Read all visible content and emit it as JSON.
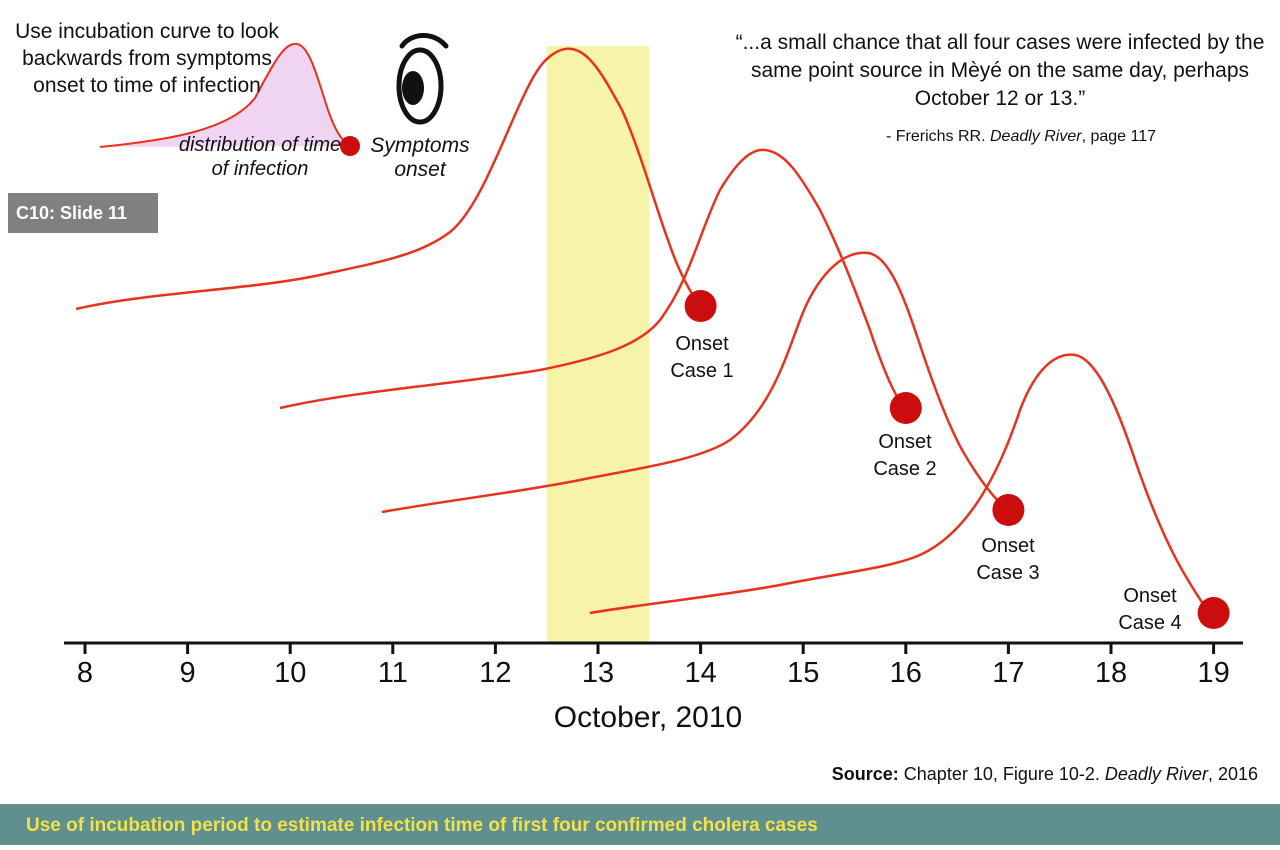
{
  "note": "Use incubation curve to look backwards from symptoms onset to time of infection",
  "distribution_label": "distribution of time of infection",
  "symptoms_label": "Symptoms onset",
  "quote": "“...a small chance that all four cases were infected by the same point source in Mèyé on the same day, perhaps October 12 or 13.”",
  "citation": {
    "prefix": "- Frerichs RR. ",
    "book": "Deadly River",
    "suffix": ", page 117"
  },
  "slide_tag": "C10: Slide 11",
  "axis": {
    "ticks": [
      "8",
      "9",
      "10",
      "11",
      "12",
      "13",
      "14",
      "15",
      "16",
      "17",
      "18",
      "19"
    ],
    "title": "October, 2010"
  },
  "highlight": {
    "from": 12.5,
    "to": 13.5,
    "color": "#f7f3a8"
  },
  "cases": [
    {
      "label": "Onset Case 1",
      "line1": "Onset",
      "line2": "Case 1",
      "onset_day": 14
    },
    {
      "label": "Onset Case 2",
      "line1": "Onset",
      "line2": "Case 2",
      "onset_day": 16
    },
    {
      "label": "Onset Case 3",
      "line1": "Onset",
      "line2": "Case 3",
      "onset_day": 17
    },
    {
      "label": "Onset Case 4",
      "line1": "Onset",
      "line2": "Case 4",
      "onset_day": 19
    }
  ],
  "source": {
    "bold": "Source:",
    "text": " Chapter 10, Figure 10-2. ",
    "book": "Deadly River",
    "year": ", 2016"
  },
  "footer": "Use of incubation period to estimate infection time of first four confirmed cholera cases",
  "colors": {
    "curve": "#e8321e",
    "dot": "#cc0d0d",
    "highlight": "#f7f3a8",
    "legend_fill": "#f0d5f2",
    "footer_bg": "#5f8f8f",
    "footer_text": "#f2e24a",
    "tag_bg": "#808080"
  },
  "icons": [
    "eye-icon"
  ]
}
